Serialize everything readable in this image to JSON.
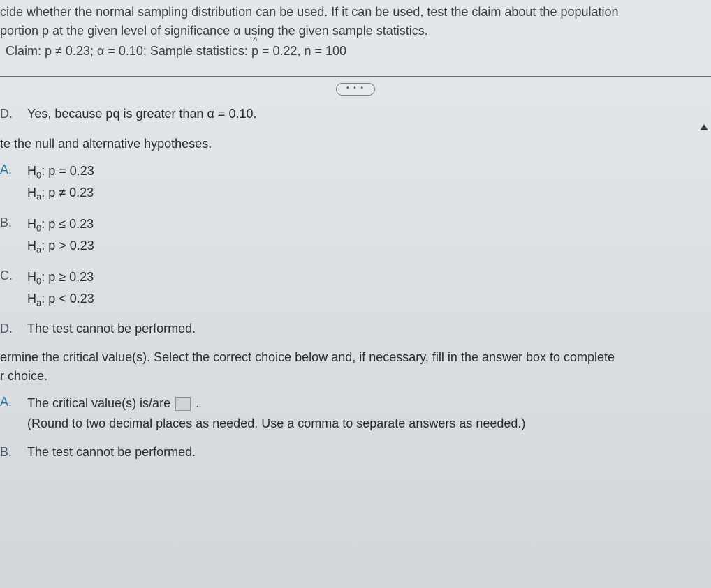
{
  "header": {
    "line1": "cide whether the normal sampling distribution can be used. If it can be used, test the claim about the population",
    "line2": "portion p at the given level of significance α using the given sample statistics.",
    "claim_prefix": "Claim: p ≠ 0.23; α = 0.10; Sample statistics: ",
    "claim_phat": "p",
    "claim_suffix": " = 0.22, n = 100"
  },
  "ellipsis": "• • •",
  "optionD_first": {
    "letter": "D.",
    "text": "Yes, because pq is greater than α = 0.10."
  },
  "hyp_prompt": "te the null and alternative hypotheses.",
  "hypotheses": {
    "A": {
      "letter": "A.",
      "h0": "H",
      "h0sub": "0",
      "h0rest": ": p = 0.23",
      "ha": "H",
      "hasub": "a",
      "harest": ": p ≠ 0.23"
    },
    "B": {
      "letter": "B.",
      "h0": "H",
      "h0sub": "0",
      "h0rest": ": p ≤ 0.23",
      "ha": "H",
      "hasub": "a",
      "harest": ": p > 0.23"
    },
    "C": {
      "letter": "C.",
      "h0": "H",
      "h0sub": "0",
      "h0rest": ": p ≥ 0.23",
      "ha": "H",
      "hasub": "a",
      "harest": ": p < 0.23"
    },
    "D": {
      "letter": "D.",
      "text": "The test cannot be performed."
    }
  },
  "crit_prompt_1": "ermine the critical value(s). Select the correct choice below and, if necessary, fill in the answer box to complete",
  "crit_prompt_2": "r choice.",
  "critA": {
    "letter": "A.",
    "line1_pre": "The critical value(s) is/are ",
    "line1_post": " .",
    "line2": "(Round to two decimal places as needed. Use a comma to separate answers as needed.)"
  },
  "critB": {
    "letter": "B.",
    "text": "The test cannot be performed."
  }
}
